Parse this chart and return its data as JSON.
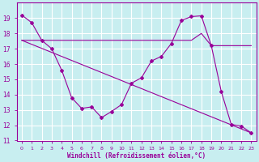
{
  "xlabel": "Windchill (Refroidissement éolien,°C)",
  "bg_color": "#c8eef0",
  "grid_color": "#ffffff",
  "line_color": "#990099",
  "ylim": [
    11,
    20
  ],
  "xlim": [
    -0.5,
    23.5
  ],
  "yticks": [
    11,
    12,
    13,
    14,
    15,
    16,
    17,
    18,
    19
  ],
  "xticks": [
    0,
    1,
    2,
    3,
    4,
    5,
    6,
    7,
    8,
    9,
    10,
    11,
    12,
    13,
    14,
    15,
    16,
    17,
    18,
    19,
    20,
    21,
    22,
    23
  ],
  "series1_x": [
    0,
    1,
    2,
    3,
    4,
    5,
    6,
    7,
    8,
    9,
    10,
    11,
    12,
    13,
    14,
    15,
    16,
    17,
    18,
    19,
    20,
    21,
    22,
    23
  ],
  "series1_y": [
    19.2,
    18.7,
    17.55,
    17.0,
    15.6,
    13.8,
    13.1,
    13.2,
    12.5,
    12.9,
    13.35,
    14.75,
    15.1,
    16.2,
    16.5,
    17.35,
    18.85,
    19.1,
    19.15,
    17.2,
    14.2,
    12.05,
    11.95,
    11.5
  ],
  "series2_x": [
    0,
    1,
    2,
    3,
    4,
    5,
    6,
    7,
    8,
    9,
    10,
    11,
    12,
    13,
    14,
    15,
    16,
    17,
    18,
    19,
    20,
    21,
    22,
    23
  ],
  "series2_y": [
    17.55,
    17.55,
    17.55,
    17.55,
    17.55,
    17.55,
    17.55,
    17.55,
    17.55,
    17.55,
    17.55,
    17.55,
    17.55,
    17.55,
    17.55,
    17.55,
    17.55,
    17.55,
    18.0,
    17.2,
    17.2,
    17.2,
    17.2,
    17.2
  ],
  "series3_x": [
    0,
    23
  ],
  "series3_y": [
    17.55,
    11.5
  ]
}
